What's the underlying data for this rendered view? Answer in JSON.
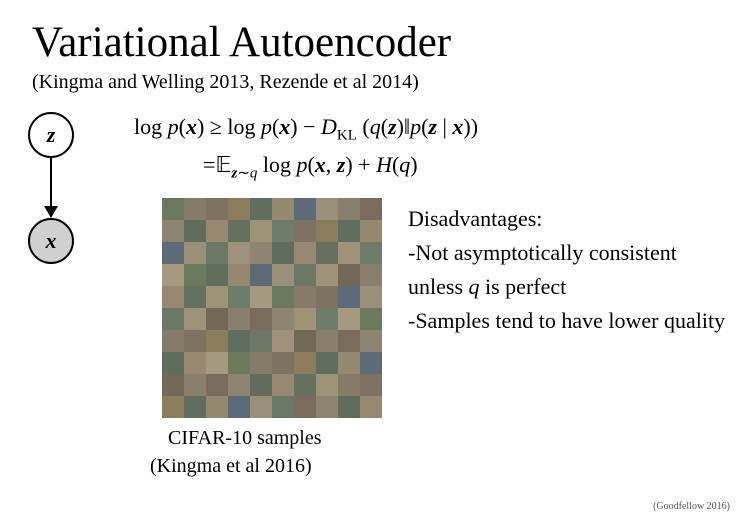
{
  "title": "Variational Autoencoder",
  "main_citation": "(Kingma and Welling 2013, Rezende et al 2014)",
  "model": {
    "node_z": "z",
    "node_x": "x",
    "x_shaded": true
  },
  "equation": {
    "line1_a": "log ",
    "line1_b": "p",
    "line1_c": "(",
    "line1_d": "x",
    "line1_e": ") ≥ log ",
    "line1_f": "p",
    "line1_g": "(",
    "line1_h": "x",
    "line1_i": ") − ",
    "line1_j": "D",
    "line1_k": "KL",
    "line1_l": " (",
    "line1_m": "q",
    "line1_n": "(",
    "line1_o": "z",
    "line1_p": ")‖",
    "line1_q": "p",
    "line1_r": "(",
    "line1_s": "z",
    "line1_t": " | ",
    "line1_u": "x",
    "line1_v": "))",
    "line2_a": "=",
    "line2_b": "𝔼",
    "line2_c": "z",
    "line2_d": "∼",
    "line2_e": "q",
    "line2_f": " log ",
    "line2_g": "p",
    "line2_h": "(",
    "line2_i": "x",
    "line2_j": ", ",
    "line2_k": "z",
    "line2_l": ") + ",
    "line2_m": "H",
    "line2_n": "(",
    "line2_o": "q",
    "line2_p": ")"
  },
  "grid": {
    "cells": 100,
    "caption_line1": "CIFAR-10 samples",
    "caption_line2": "(Kingma et al 2016)",
    "palette": [
      "#6b7a5a",
      "#8a7d5c",
      "#5d6b78",
      "#a0927a",
      "#7a6b5d",
      "#988872",
      "#6e7c6a",
      "#867b68",
      "#5f6e5e",
      "#9a8f79",
      "#726856",
      "#8d8571",
      "#66705f",
      "#a59a80",
      "#7e7362",
      "#94886f",
      "#6a7865",
      "#887f6c",
      "#616d5c",
      "#9e9377"
    ]
  },
  "disadvantages": {
    "heading": "Disadvantages:",
    "item1_a": "-Not asymptotically consistent unless ",
    "item1_b": "q",
    "item1_c": " is perfect",
    "item2": "-Samples tend to have lower quality"
  },
  "footer_citation": "(Goodfellow 2016)",
  "colors": {
    "bg": "#ffffff",
    "text": "#000000",
    "node_shaded": "#d0d0d0"
  }
}
